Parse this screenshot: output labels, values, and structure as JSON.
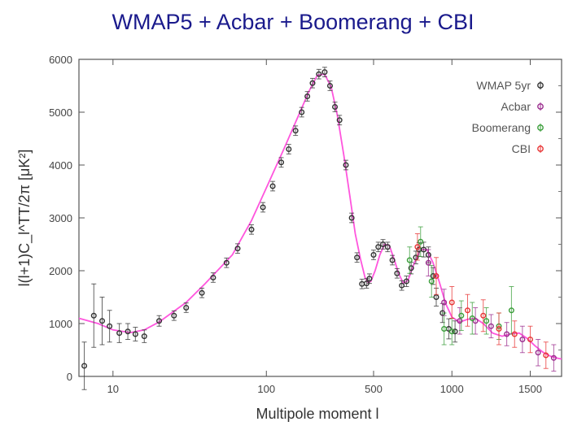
{
  "slide": {
    "title": "WMAP5 + Acbar + Boomerang + CBI"
  },
  "chart_data": {
    "type": "scatter",
    "xlabel": "Multipole moment l",
    "ylabel": "l(l+1)C_l^TT/2π [μK²]",
    "xscale": "nonlinear",
    "xlim": [
      6,
      1700
    ],
    "ylim": [
      0,
      6000
    ],
    "x_ticks": [
      {
        "value": 10,
        "label": "10"
      },
      {
        "value": 100,
        "label": "100"
      },
      {
        "value": 500,
        "label": "500"
      },
      {
        "value": 1000,
        "label": "1000"
      },
      {
        "value": 1500,
        "label": "1500"
      }
    ],
    "y_ticks": [
      {
        "value": 0,
        "label": "0"
      },
      {
        "value": 1000,
        "label": "1000"
      },
      {
        "value": 2000,
        "label": "2000"
      },
      {
        "value": 3000,
        "label": "3000"
      },
      {
        "value": 4000,
        "label": "4000"
      },
      {
        "value": 5000,
        "label": "5000"
      },
      {
        "value": 6000,
        "label": "6000"
      }
    ],
    "legend_position": "top-right",
    "model_curve": {
      "color": "#ff55dd",
      "points": [
        [
          6,
          1100
        ],
        [
          8,
          1000
        ],
        [
          10,
          880
        ],
        [
          13,
          830
        ],
        [
          16,
          880
        ],
        [
          20,
          1030
        ],
        [
          30,
          1400
        ],
        [
          40,
          1760
        ],
        [
          60,
          2300
        ],
        [
          80,
          2950
        ],
        [
          100,
          3570
        ],
        [
          130,
          4300
        ],
        [
          160,
          4900
        ],
        [
          190,
          5400
        ],
        [
          215,
          5700
        ],
        [
          240,
          5720
        ],
        [
          265,
          5470
        ],
        [
          290,
          4950
        ],
        [
          320,
          4180
        ],
        [
          350,
          3420
        ],
        [
          380,
          2700
        ],
        [
          410,
          2230
        ],
        [
          440,
          1870
        ],
        [
          460,
          1780
        ],
        [
          480,
          1800
        ],
        [
          510,
          2000
        ],
        [
          540,
          2300
        ],
        [
          570,
          2500
        ],
        [
          600,
          2480
        ],
        [
          630,
          2230
        ],
        [
          660,
          1950
        ],
        [
          690,
          1760
        ],
        [
          720,
          1820
        ],
        [
          760,
          2150
        ],
        [
          800,
          2400
        ],
        [
          840,
          2400
        ],
        [
          880,
          2150
        ],
        [
          920,
          1780
        ],
        [
          960,
          1380
        ],
        [
          1000,
          1120
        ],
        [
          1050,
          1030
        ],
        [
          1100,
          1080
        ],
        [
          1150,
          1100
        ],
        [
          1200,
          1000
        ],
        [
          1260,
          820
        ],
        [
          1320,
          760
        ],
        [
          1380,
          810
        ],
        [
          1430,
          820
        ],
        [
          1480,
          720
        ],
        [
          1530,
          580
        ],
        [
          1580,
          460
        ],
        [
          1630,
          380
        ],
        [
          1680,
          340
        ],
        [
          1700,
          330
        ]
      ]
    },
    "series": [
      {
        "name": "WMAP 5yr",
        "color": "#333333",
        "points": [
          [
            6.5,
            200,
            450
          ],
          [
            7.5,
            1150,
            600
          ],
          [
            8.5,
            1050,
            450
          ],
          [
            9.5,
            950,
            300
          ],
          [
            11,
            820,
            180
          ],
          [
            12.5,
            850,
            150
          ],
          [
            14,
            800,
            130
          ],
          [
            16,
            760,
            120
          ],
          [
            20,
            1050,
            100
          ],
          [
            25,
            1150,
            90
          ],
          [
            30,
            1300,
            90
          ],
          [
            38,
            1580,
            90
          ],
          [
            45,
            1870,
            90
          ],
          [
            55,
            2150,
            90
          ],
          [
            65,
            2420,
            90
          ],
          [
            80,
            2780,
            90
          ],
          [
            95,
            3200,
            90
          ],
          [
            110,
            3600,
            90
          ],
          [
            125,
            4050,
            90
          ],
          [
            140,
            4300,
            90
          ],
          [
            155,
            4650,
            90
          ],
          [
            170,
            5000,
            90
          ],
          [
            185,
            5300,
            90
          ],
          [
            200,
            5550,
            90
          ],
          [
            220,
            5720,
            90
          ],
          [
            240,
            5760,
            90
          ],
          [
            260,
            5500,
            90
          ],
          [
            280,
            5100,
            90
          ],
          [
            300,
            4850,
            90
          ],
          [
            330,
            4000,
            90
          ],
          [
            360,
            3000,
            90
          ],
          [
            390,
            2250,
            90
          ],
          [
            420,
            1750,
            90
          ],
          [
            450,
            1760,
            90
          ],
          [
            470,
            1850,
            90
          ],
          [
            500,
            2300,
            90
          ],
          [
            530,
            2450,
            90
          ],
          [
            560,
            2500,
            90
          ],
          [
            590,
            2450,
            90
          ],
          [
            620,
            2200,
            90
          ],
          [
            650,
            1950,
            90
          ],
          [
            680,
            1720,
            90
          ],
          [
            710,
            1800,
            100
          ],
          [
            740,
            2050,
            110
          ],
          [
            770,
            2250,
            120
          ],
          [
            790,
            2400,
            130
          ],
          [
            820,
            2400,
            140
          ],
          [
            850,
            2300,
            150
          ],
          [
            880,
            1900,
            160
          ],
          [
            900,
            1500,
            170
          ],
          [
            940,
            1200,
            180
          ],
          [
            980,
            900,
            190
          ],
          [
            1020,
            850,
            200
          ]
        ]
      },
      {
        "name": "Acbar",
        "color": "#9b2d8e",
        "points": [
          [
            850,
            2150,
            250
          ],
          [
            950,
            1400,
            250
          ],
          [
            1050,
            1050,
            250
          ],
          [
            1150,
            1050,
            250
          ],
          [
            1250,
            950,
            220
          ],
          [
            1350,
            800,
            220
          ],
          [
            1450,
            700,
            250
          ],
          [
            1550,
            450,
            250
          ],
          [
            1650,
            350,
            250
          ]
        ]
      },
      {
        "name": "Boomerang",
        "color": "#3a9e3a",
        "points": [
          [
            730,
            2200,
            250
          ],
          [
            800,
            2550,
            280
          ],
          [
            870,
            1800,
            300
          ],
          [
            950,
            900,
            300
          ],
          [
            1000,
            850,
            250
          ],
          [
            1060,
            1150,
            280
          ],
          [
            1130,
            1100,
            300
          ],
          [
            1220,
            1050,
            250
          ],
          [
            1300,
            950,
            250
          ],
          [
            1380,
            1250,
            450
          ]
        ]
      },
      {
        "name": "CBI",
        "color": "#e83535",
        "points": [
          [
            780,
            2450,
            250
          ],
          [
            900,
            1900,
            350
          ],
          [
            1000,
            1400,
            300
          ],
          [
            1100,
            1250,
            300
          ],
          [
            1200,
            1150,
            300
          ],
          [
            1300,
            900,
            300
          ],
          [
            1400,
            800,
            250
          ],
          [
            1500,
            700,
            250
          ],
          [
            1600,
            400,
            250
          ]
        ]
      }
    ]
  }
}
